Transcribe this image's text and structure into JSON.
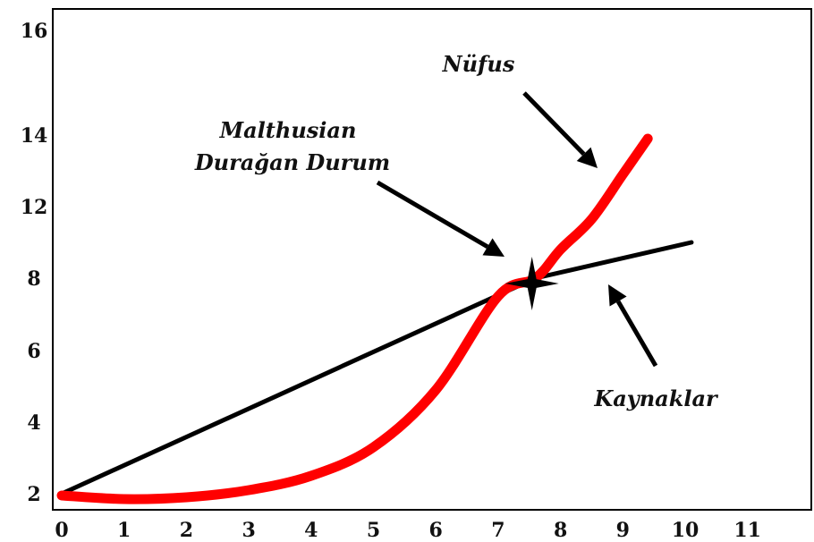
{
  "chart_data": {
    "type": "line",
    "x_ticks": [
      "0",
      "1",
      "2",
      "3",
      "4",
      "5",
      "6",
      "7",
      "8",
      "9",
      "10",
      "11"
    ],
    "y_ticks": [
      "2",
      "4",
      "6",
      "8",
      "12",
      "14",
      "16"
    ],
    "series": [
      {
        "name": "Kaynaklar",
        "color": "#000000",
        "points": [
          [
            0,
            2.0
          ],
          [
            7.6,
            8.0
          ],
          [
            10.1,
            10.0
          ]
        ]
      },
      {
        "name": "Nüfus",
        "color": "#ff0000",
        "points": [
          [
            0,
            1.95
          ],
          [
            1,
            1.85
          ],
          [
            2,
            1.9
          ],
          [
            3,
            2.1
          ],
          [
            4,
            2.5
          ],
          [
            5,
            3.3
          ],
          [
            6,
            4.9
          ],
          [
            7,
            7.5
          ],
          [
            7.6,
            8.0
          ],
          [
            8,
            9.6
          ],
          [
            8.5,
            11.3
          ],
          [
            9,
            12.9
          ],
          [
            9.4,
            13.9
          ]
        ]
      }
    ],
    "annotations": [
      {
        "id": "nufus",
        "text": [
          "Nüfus"
        ]
      },
      {
        "id": "malthus",
        "text": [
          "Malthusian",
          "Durağan Durum"
        ]
      },
      {
        "id": "kaynaklar",
        "text": [
          "Kaynaklar"
        ]
      }
    ],
    "equilibrium_point": [
      7.6,
      8.0
    ],
    "grid": false,
    "legend": "none"
  }
}
